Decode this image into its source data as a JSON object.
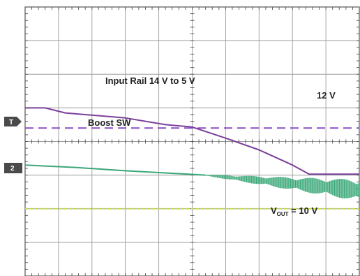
{
  "chart_data": {
    "type": "line",
    "grid": {
      "divisions_x": 10,
      "divisions_y": 8,
      "minor_ticks_per_division": 5,
      "shown": true
    },
    "channel_markers": [
      {
        "label": "T",
        "y_div": 4.5,
        "color": "#4a4a4a"
      },
      {
        "label": "2",
        "y_div": 5.0,
        "color": "#4a4a4a"
      }
    ],
    "series": [
      {
        "name": "Input Rail 14 V to 5 V",
        "color": "#7a3f9a",
        "style": "solid",
        "points": [
          [
            0,
            3.0
          ],
          [
            0.6,
            3.0
          ],
          [
            1.2,
            3.15
          ],
          [
            3.0,
            3.3
          ],
          [
            4.2,
            3.5
          ],
          [
            5.0,
            3.57
          ],
          [
            6.0,
            3.9
          ],
          [
            7.0,
            4.25
          ],
          [
            8.0,
            4.7
          ],
          [
            8.5,
            4.97
          ],
          [
            10,
            4.97
          ]
        ]
      },
      {
        "name": "Boost SW",
        "color": "#3aa878",
        "style": "solid",
        "points": [
          [
            0,
            4.7
          ],
          [
            1.5,
            4.77
          ],
          [
            3.0,
            4.87
          ],
          [
            5.4,
            5.0
          ]
        ],
        "ripple": {
          "start_x": 5.4,
          "end_x": 10,
          "center_start": 5.0,
          "center_end": 5.45,
          "amp_start": 0.02,
          "amp_end": 0.32
        }
      }
    ],
    "reference_lines": [
      {
        "label": "12 V",
        "y_div": 3.6,
        "color": "#8a4fc8",
        "style": "dashed"
      },
      {
        "label": "",
        "y_div": 6.0,
        "color": "#c8dc3c",
        "style": "dashed"
      },
      {
        "label": "V_OUT = 10 V",
        "y_div": 8.2,
        "color": "#c4443a",
        "style": "solid"
      }
    ]
  },
  "annotations": {
    "input_rail": "Input Rail 14 V to 5 V",
    "boost_sw": "Boost SW",
    "twelve_v": "12 V",
    "vout_main": "V",
    "vout_sub": "OUT",
    "vout_value": " = 10 V"
  },
  "markers": {
    "trigger": "T",
    "channel2": "2"
  }
}
